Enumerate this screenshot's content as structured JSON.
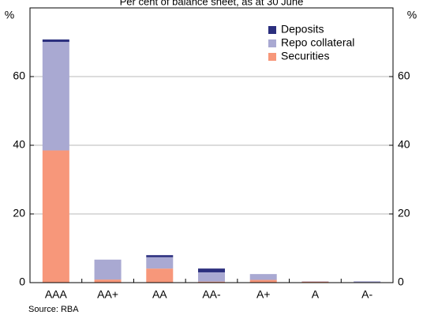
{
  "chart_data": {
    "type": "stacked_bar",
    "subtitle": "Per cent of balance sheet, as at 30 June",
    "y_unit": "%",
    "source": "Source: RBA",
    "categories": [
      "AAA",
      "AA+",
      "AA",
      "AA-",
      "A+",
      "A",
      "A-"
    ],
    "series": [
      {
        "name": "Securities",
        "color": "#f7977a",
        "values": [
          38.5,
          0.9,
          4.1,
          0.3,
          0.8,
          0.3,
          0.1
        ]
      },
      {
        "name": "Repo collateral",
        "color": "#a9a9d2",
        "values": [
          31.6,
          5.8,
          3.3,
          2.7,
          1.7,
          0.1,
          0.3
        ]
      },
      {
        "name": "Deposits",
        "color": "#2b2f7e",
        "values": [
          0.7,
          0,
          0.6,
          1.1,
          0,
          0,
          0
        ]
      }
    ],
    "ylim": [
      0,
      80
    ],
    "yticks": [
      0,
      20,
      40,
      60
    ],
    "grid": true,
    "legend": "upper right"
  }
}
